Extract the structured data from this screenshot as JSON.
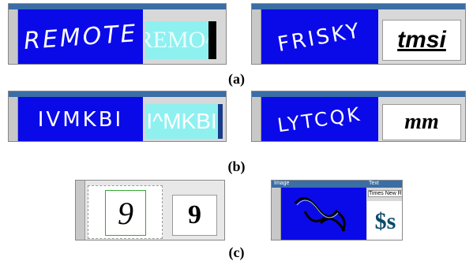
{
  "rows": [
    {
      "label": "(a)",
      "panels": [
        {
          "captcha": "REMOTE",
          "ocr": "REMO^"
        },
        {
          "captcha": "FRISKY",
          "ocr": "tmsi"
        }
      ]
    },
    {
      "label": "(b)",
      "panels": [
        {
          "captcha": "IVMKBI",
          "ocr": "I^MKBI"
        },
        {
          "captcha": "LYTCQK",
          "ocr": "mm"
        }
      ]
    },
    {
      "label": "(c)",
      "panels": [
        {
          "captcha": "9",
          "ocr": "9"
        },
        {
          "image_title": "Image",
          "text_title": "Text",
          "font_name": "Times New Roma",
          "ocr": "$s"
        }
      ]
    }
  ]
}
